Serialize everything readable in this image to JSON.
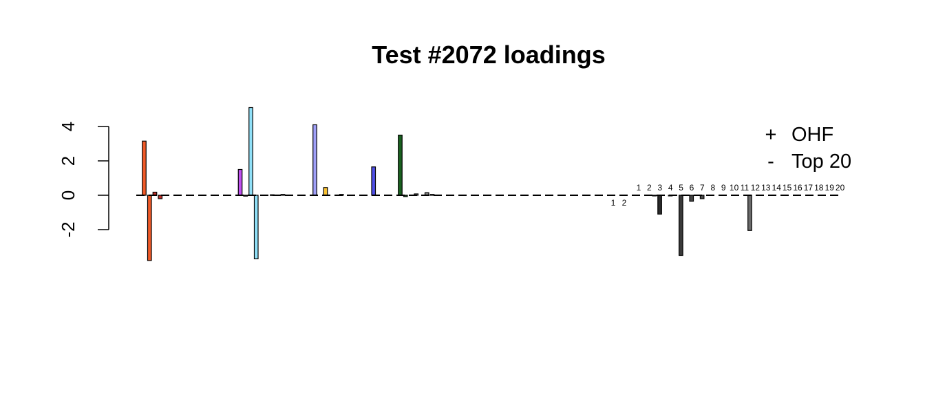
{
  "chart_data": {
    "type": "bar",
    "title": "Test #2072 loadings",
    "xlabel": "",
    "ylabel": "",
    "ylim": [
      -3.9,
      5.3
    ],
    "yticks": [
      "-2",
      "0",
      "2",
      "4"
    ],
    "grid": false,
    "legend_position": "top-right",
    "legend": [
      {
        "symbol": "+",
        "label": "OHF"
      },
      {
        "symbol": "-",
        "label": "Top 20"
      }
    ],
    "series": [
      {
        "values": [
          0.0,
          3.15,
          -3.8,
          0.18,
          -0.2,
          0.0,
          0.0,
          0.0,
          0.0,
          0.0,
          0.0,
          0.0,
          0.0,
          0.0,
          0.0,
          0.0,
          0.0,
          0.0,
          0.0,
          1.5,
          -0.05,
          5.1,
          -3.7,
          0.0,
          0.0,
          0.03,
          0.0,
          0.05,
          0.0,
          0.0,
          0.0,
          0.0,
          0.0,
          4.1,
          0.0,
          0.45,
          0.0,
          0.0,
          0.05,
          0.0,
          0.0,
          0.0,
          0.0,
          0.0,
          1.65,
          0.0,
          0.0,
          0.0,
          0.0,
          3.5,
          -0.08,
          0.0,
          0.08,
          0.0,
          0.15,
          0.05
        ]
      },
      {
        "values": [
          0.0,
          0.0,
          0.0,
          -0.02,
          -1.1,
          0.0,
          -0.03,
          0.0,
          -3.5,
          0.0,
          -0.35,
          0.0,
          -0.2,
          0.0,
          0.0,
          0.0,
          0.0,
          0.0,
          0.0,
          0.0,
          0.0,
          -2.05,
          0.0,
          0.0,
          0.0,
          0.0,
          0.0,
          0.0,
          0.0,
          0.0,
          0.0,
          0.0,
          0.0,
          0.0,
          0.0,
          0.0,
          0.0,
          0.0,
          0.0,
          0.0
        ]
      }
    ],
    "top_labels": [
      "1",
      "2",
      "3",
      "4",
      "5",
      "6",
      "7",
      "8",
      "9",
      "10",
      "11",
      "12",
      "13",
      "14",
      "15",
      "16",
      "17",
      "18",
      "19",
      "20"
    ],
    "ohf_labels": [
      "1",
      "2"
    ]
  }
}
